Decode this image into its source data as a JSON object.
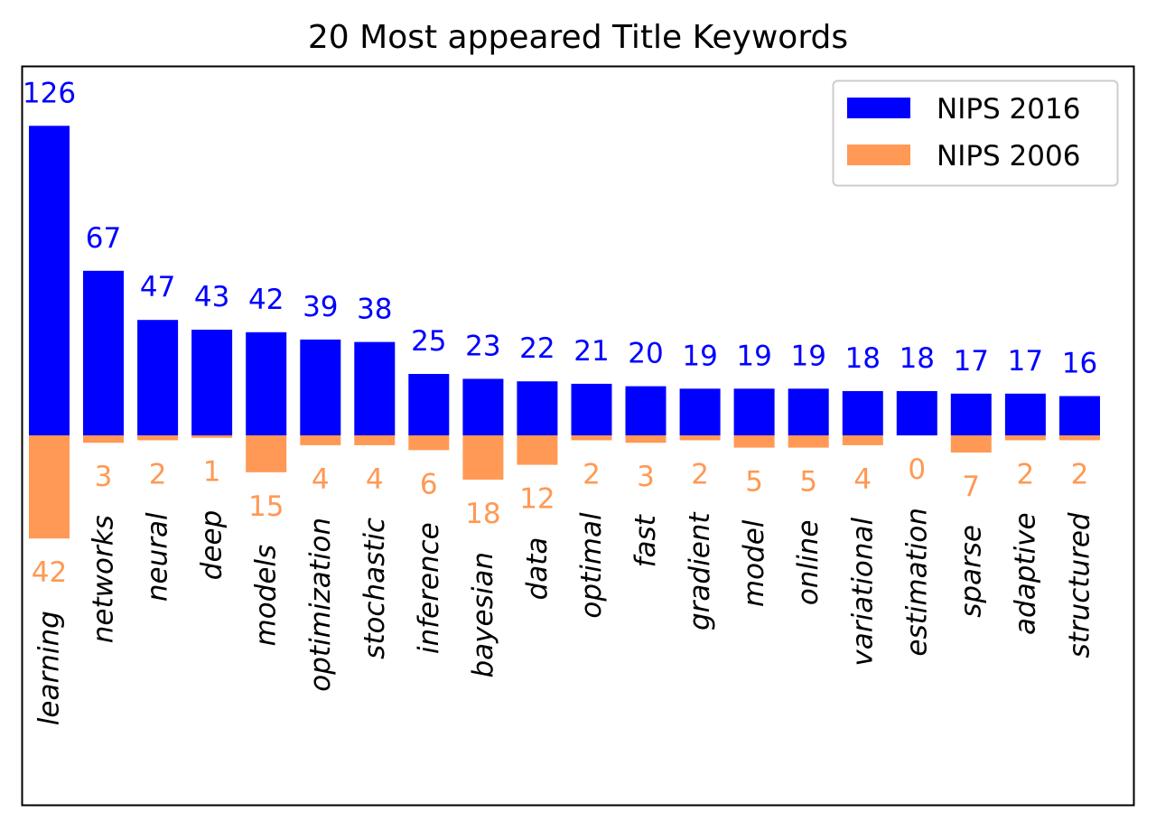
{
  "chart_data": {
    "type": "bar",
    "title": "20 Most appeared Title Keywords",
    "xlabel": "",
    "ylabel": "",
    "categories": [
      "learning",
      "networks",
      "neural",
      "deep",
      "models",
      "optimization",
      "stochastic",
      "inference",
      "bayesian",
      "data",
      "optimal",
      "fast",
      "gradient",
      "model",
      "online",
      "variational",
      "estimation",
      "sparse",
      "adaptive",
      "structured"
    ],
    "series": [
      {
        "name": "NIPS 2016",
        "color": "#0000ff",
        "direction": "up",
        "values": [
          126,
          67,
          47,
          43,
          42,
          39,
          38,
          25,
          23,
          22,
          21,
          20,
          19,
          19,
          19,
          18,
          18,
          17,
          17,
          16
        ]
      },
      {
        "name": "NIPS 2006",
        "color": "#ff9955",
        "direction": "down",
        "values": [
          42,
          3,
          2,
          1,
          15,
          4,
          4,
          6,
          18,
          12,
          2,
          3,
          2,
          5,
          5,
          4,
          0,
          7,
          2,
          2
        ]
      }
    ],
    "legend_position": "top-right",
    "grid": false,
    "axis_ticks": false
  }
}
